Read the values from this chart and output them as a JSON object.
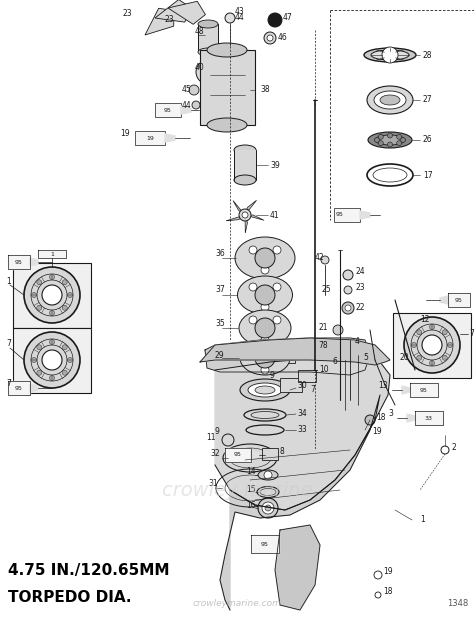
{
  "fig_width": 4.74,
  "fig_height": 6.19,
  "dpi": 100,
  "background_color": "#ffffff",
  "line_color": "#1a1a1a",
  "light_fill": "#e8e8e8",
  "mid_fill": "#c0c0c0",
  "subtitle_line1": "4.75 IN./120.65MM",
  "subtitle_line2": "TORPEDO DIA.",
  "watermark": "crowleymarine.com",
  "part_number": "1348",
  "subtitle_fontsize": 11,
  "label_fontsize": 5.5,
  "watermark_color": "#aaaaaa",
  "part_number_color": "#555555"
}
